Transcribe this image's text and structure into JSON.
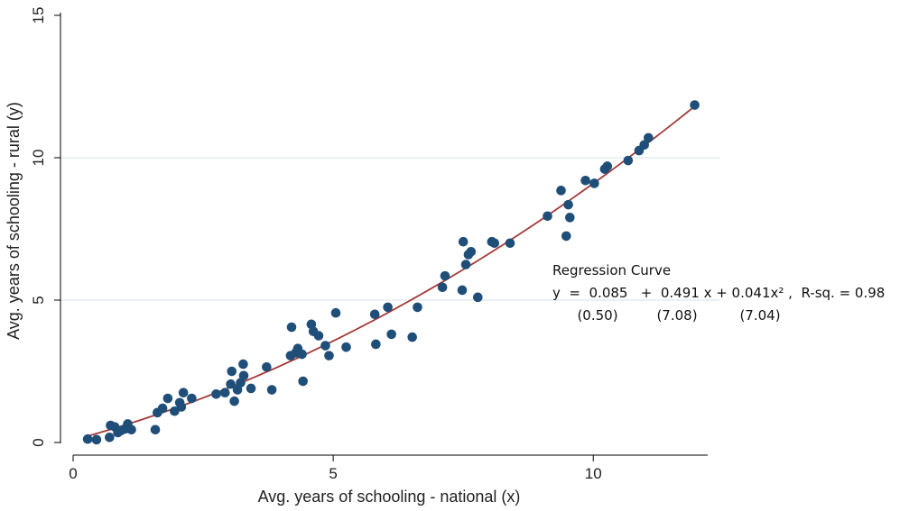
{
  "chart_data": {
    "type": "scatter",
    "xlabel": "Avg. years of schooling - national (x)",
    "ylabel": "Avg. years of schooling - rural (y)",
    "xlim": [
      0,
      12.2
    ],
    "ylim": [
      0,
      15
    ],
    "x_ticks": [
      0,
      5,
      10
    ],
    "y_ticks": [
      0,
      5,
      10,
      15
    ],
    "grid": "horizontal",
    "colors": {
      "points": "#1f4e79",
      "fit_line": "#a33a3a",
      "grid": "#dfe8ec",
      "axis": "#000000"
    },
    "points": [
      {
        "x": 0.28,
        "y": 0.12
      },
      {
        "x": 0.45,
        "y": 0.1
      },
      {
        "x": 0.7,
        "y": 0.18
      },
      {
        "x": 0.72,
        "y": 0.6
      },
      {
        "x": 0.8,
        "y": 0.55
      },
      {
        "x": 0.86,
        "y": 0.35
      },
      {
        "x": 0.92,
        "y": 0.42
      },
      {
        "x": 1.0,
        "y": 0.48
      },
      {
        "x": 1.05,
        "y": 0.65
      },
      {
        "x": 1.12,
        "y": 0.45
      },
      {
        "x": 1.58,
        "y": 0.45
      },
      {
        "x": 1.62,
        "y": 1.05
      },
      {
        "x": 1.72,
        "y": 1.2
      },
      {
        "x": 1.82,
        "y": 1.55
      },
      {
        "x": 1.95,
        "y": 1.1
      },
      {
        "x": 2.05,
        "y": 1.4
      },
      {
        "x": 2.08,
        "y": 1.25
      },
      {
        "x": 2.12,
        "y": 1.75
      },
      {
        "x": 2.28,
        "y": 1.55
      },
      {
        "x": 2.75,
        "y": 1.7
      },
      {
        "x": 2.92,
        "y": 1.75
      },
      {
        "x": 3.03,
        "y": 2.05
      },
      {
        "x": 3.05,
        "y": 2.5
      },
      {
        "x": 3.1,
        "y": 1.45
      },
      {
        "x": 3.16,
        "y": 1.85
      },
      {
        "x": 3.22,
        "y": 2.1
      },
      {
        "x": 3.27,
        "y": 2.75
      },
      {
        "x": 3.28,
        "y": 2.35
      },
      {
        "x": 3.42,
        "y": 1.9
      },
      {
        "x": 3.72,
        "y": 2.65
      },
      {
        "x": 3.82,
        "y": 1.85
      },
      {
        "x": 4.18,
        "y": 3.05
      },
      {
        "x": 4.2,
        "y": 4.05
      },
      {
        "x": 4.28,
        "y": 3.15
      },
      {
        "x": 4.32,
        "y": 3.3
      },
      {
        "x": 4.4,
        "y": 3.1
      },
      {
        "x": 4.42,
        "y": 2.15
      },
      {
        "x": 4.58,
        "y": 4.15
      },
      {
        "x": 4.62,
        "y": 3.9
      },
      {
        "x": 4.72,
        "y": 3.75
      },
      {
        "x": 4.85,
        "y": 3.4
      },
      {
        "x": 4.92,
        "y": 3.05
      },
      {
        "x": 5.05,
        "y": 4.55
      },
      {
        "x": 5.25,
        "y": 3.35
      },
      {
        "x": 5.8,
        "y": 4.5
      },
      {
        "x": 5.82,
        "y": 3.45
      },
      {
        "x": 6.05,
        "y": 4.75
      },
      {
        "x": 6.12,
        "y": 3.8
      },
      {
        "x": 6.52,
        "y": 3.7
      },
      {
        "x": 6.62,
        "y": 4.75
      },
      {
        "x": 7.1,
        "y": 5.45
      },
      {
        "x": 7.15,
        "y": 5.85
      },
      {
        "x": 7.48,
        "y": 5.35
      },
      {
        "x": 7.5,
        "y": 7.05
      },
      {
        "x": 7.55,
        "y": 6.25
      },
      {
        "x": 7.6,
        "y": 6.6
      },
      {
        "x": 7.65,
        "y": 6.7
      },
      {
        "x": 7.78,
        "y": 5.1
      },
      {
        "x": 8.05,
        "y": 7.05
      },
      {
        "x": 8.1,
        "y": 7.0
      },
      {
        "x": 8.4,
        "y": 7.0
      },
      {
        "x": 9.12,
        "y": 7.95
      },
      {
        "x": 9.38,
        "y": 8.85
      },
      {
        "x": 9.48,
        "y": 7.25
      },
      {
        "x": 9.52,
        "y": 8.35
      },
      {
        "x": 9.55,
        "y": 7.9
      },
      {
        "x": 9.85,
        "y": 9.2
      },
      {
        "x": 10.02,
        "y": 9.1
      },
      {
        "x": 10.22,
        "y": 9.6
      },
      {
        "x": 10.27,
        "y": 9.7
      },
      {
        "x": 10.67,
        "y": 9.9
      },
      {
        "x": 10.88,
        "y": 10.25
      },
      {
        "x": 10.98,
        "y": 10.45
      },
      {
        "x": 11.06,
        "y": 10.7
      },
      {
        "x": 11.95,
        "y": 11.85
      }
    ],
    "fit": {
      "intercept": 0.085,
      "linear": 0.491,
      "quadratic": 0.041,
      "x_range": [
        0.28,
        11.95
      ]
    },
    "annotation": {
      "title": "Regression Curve",
      "equation": "y  =  0.085   +  0.491 x + 0.041x² ,  R-sq. = 0.98",
      "t_stats": [
        "(0.50)",
        "(7.08)",
        "(7.04)"
      ]
    }
  }
}
